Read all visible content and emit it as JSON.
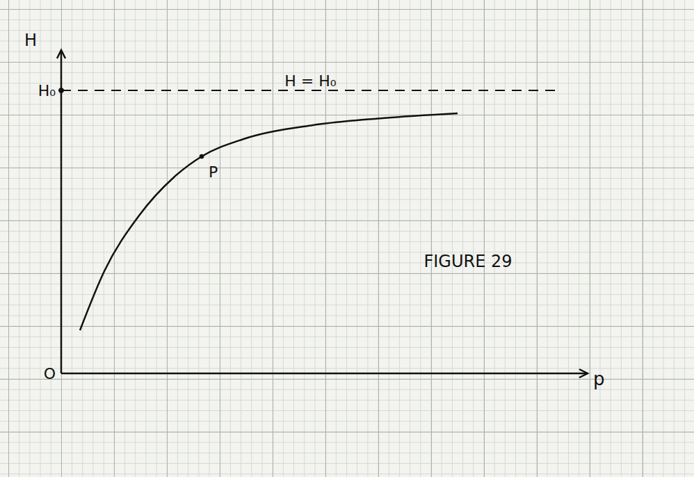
{
  "chart_data": {
    "type": "line",
    "x_label": "p",
    "y_label": "H",
    "x": [
      0.27,
      0.62,
      1.12,
      1.62,
      2.02,
      2.62,
      3.62,
      4.62,
      5.7
    ],
    "values": [
      0.62,
      1.47,
      2.27,
      2.82,
      3.12,
      3.37,
      3.57,
      3.67,
      3.74
    ],
    "color": "#111111",
    "xlim": [
      0,
      7.57
    ],
    "ylim": [
      0,
      4.65
    ],
    "xticks": [],
    "yticks": [
      {
        "value": 0,
        "label": "O"
      },
      {
        "value": 4.07,
        "label": "H₀"
      }
    ],
    "tick_labels": "y",
    "grid": true,
    "reference_line": {
      "y": 4.07,
      "x_end": 7.17,
      "label": "H = H₀",
      "line_style": "dashed"
    },
    "point": {
      "text": "P",
      "x": 2.02,
      "y": 3.12
    },
    "annotations": [
      {
        "text": "FIGURE 29",
        "x": 5.85,
        "y": 1.62
      }
    ]
  }
}
